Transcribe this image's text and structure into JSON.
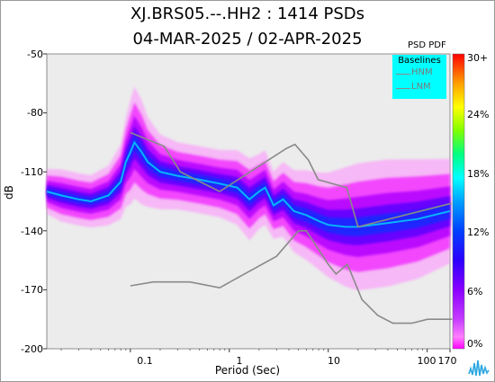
{
  "chart_data": {
    "type": "heatmap",
    "title": "XJ.BRS05.--.HH2 : 1414 PSDs",
    "subtitle": "04-MAR-2025 / 02-APR-2025",
    "xlabel": "Period (Sec)",
    "ylabel": "dB",
    "x_scale": "log",
    "xlim": [
      0.0143,
      170
    ],
    "ylim": [
      -200,
      -50
    ],
    "x_ticks": [
      "0.1",
      "1",
      "10",
      "100",
      "170"
    ],
    "x_tick_values": [
      0.1,
      1,
      10,
      100,
      170
    ],
    "y_ticks": [
      "-50",
      "-80",
      "-110",
      "-140",
      "-170",
      "-200"
    ],
    "y_tick_values": [
      -50,
      -80,
      -110,
      -140,
      -170,
      -200
    ],
    "colorbar": {
      "title": "PSD PDF",
      "ticks": [
        "30+",
        "24%",
        "18%",
        "12%",
        "6%",
        "0%"
      ],
      "colors": [
        "#ff00ff",
        "#ff7fff",
        "#c63cff",
        "#8a00ff",
        "#2b00ff",
        "#0040ff",
        "#00a0ff",
        "#00ffff",
        "#00ff80",
        "#80ff00",
        "#ffff00",
        "#ffa000",
        "#ff0000"
      ]
    },
    "legend": {
      "title": "Baselines",
      "items": [
        "HNM",
        "LNM"
      ],
      "placement": "top-right"
    },
    "series": [
      {
        "name": "HNM",
        "x": [
          0.1,
          0.22,
          0.32,
          0.8,
          3.8,
          4.6,
          6.3,
          7.9,
          15.4,
          20,
          176
        ],
        "y": [
          -90,
          -97,
          -110,
          -120,
          -98,
          -96,
          -104,
          -114,
          -118,
          -138,
          -126
        ]
      },
      {
        "name": "LNM",
        "x": [
          0.1,
          0.17,
          0.4,
          0.8,
          1.2,
          3,
          5,
          6,
          10,
          12,
          15.6,
          21.9,
          31.6,
          45,
          70,
          101,
          154,
          178
        ],
        "y": [
          -168,
          -166,
          -166,
          -169,
          -164,
          -153,
          -140,
          -140,
          -157,
          -162,
          -157,
          -175,
          -183,
          -187,
          -187,
          -185,
          -185,
          -185
        ]
      }
    ],
    "pdf_mode_band": {
      "x": [
        0.0143,
        0.02,
        0.03,
        0.04,
        0.06,
        0.08,
        0.09,
        0.1,
        0.11,
        0.13,
        0.15,
        0.2,
        0.3,
        0.5,
        0.8,
        1.2,
        1.6,
        2.0,
        2.3,
        2.8,
        3.5,
        4.5,
        6,
        8,
        10,
        15,
        20,
        40,
        80,
        170
      ],
      "y": [
        -120,
        -122,
        -124,
        -125,
        -122,
        -115,
        -105,
        -100,
        -95,
        -100,
        -105,
        -110,
        -112,
        -114,
        -116,
        -118,
        -124,
        -120,
        -118,
        -127,
        -124,
        -130,
        -132,
        -135,
        -137,
        -138,
        -138,
        -136,
        -134,
        -130
      ],
      "spread": [
        6,
        7,
        7,
        7,
        8,
        10,
        12,
        14,
        15,
        14,
        12,
        10,
        9,
        9,
        9,
        10,
        11,
        10,
        10,
        9,
        10,
        11,
        12,
        13,
        14,
        16,
        17,
        17,
        16,
        14
      ]
    },
    "grid": false
  }
}
